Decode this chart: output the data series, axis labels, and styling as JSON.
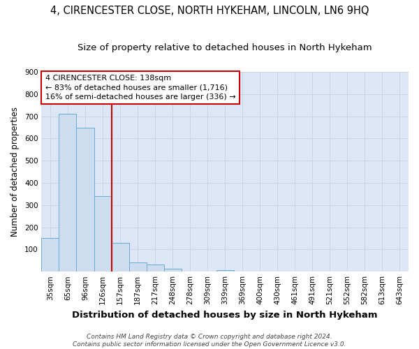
{
  "title": "4, CIRENCESTER CLOSE, NORTH HYKEHAM, LINCOLN, LN6 9HQ",
  "subtitle": "Size of property relative to detached houses in North Hykeham",
  "xlabel": "Distribution of detached houses by size in North Hykeham",
  "ylabel": "Number of detached properties",
  "categories": [
    "35sqm",
    "65sqm",
    "96sqm",
    "126sqm",
    "157sqm",
    "187sqm",
    "217sqm",
    "248sqm",
    "278sqm",
    "309sqm",
    "339sqm",
    "369sqm",
    "400sqm",
    "430sqm",
    "461sqm",
    "491sqm",
    "521sqm",
    "552sqm",
    "582sqm",
    "613sqm",
    "643sqm"
  ],
  "values": [
    150,
    710,
    650,
    340,
    130,
    42,
    32,
    13,
    0,
    0,
    8,
    0,
    0,
    0,
    0,
    0,
    0,
    0,
    0,
    0,
    0
  ],
  "bar_color": "#cdddf0",
  "bar_edge_color": "#6aaad4",
  "red_line_x": 3.5,
  "annotation_text": "4 CIRENCESTER CLOSE: 138sqm\n← 83% of detached houses are smaller (1,716)\n16% of semi-detached houses are larger (336) →",
  "annotation_box_color": "#ffffff",
  "annotation_box_edge": "#cc0000",
  "vline_color": "#cc0000",
  "grid_color": "#c8d4e8",
  "bg_color": "#dce6f5",
  "fig_bg_color": "#ffffff",
  "footnote": "Contains HM Land Registry data © Crown copyright and database right 2024.\nContains public sector information licensed under the Open Government Licence v3.0.",
  "ylim": [
    0,
    900
  ],
  "title_fontsize": 10.5,
  "subtitle_fontsize": 9.5,
  "xlabel_fontsize": 9.5,
  "ylabel_fontsize": 8.5,
  "tick_fontsize": 7.5,
  "annotation_fontsize": 8,
  "footnote_fontsize": 6.5
}
